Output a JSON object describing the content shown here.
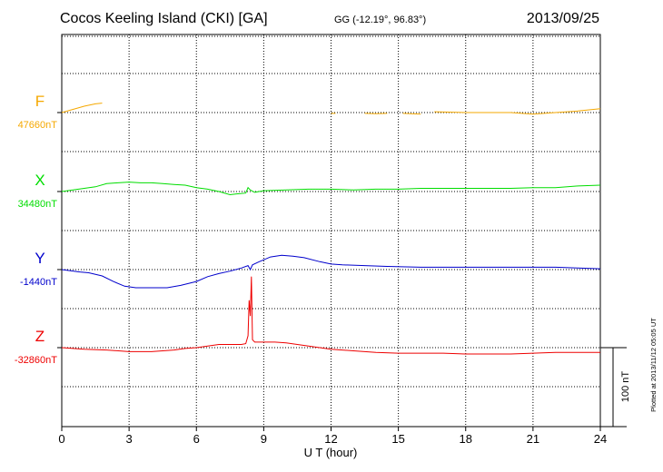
{
  "header": {
    "station": "Cocos Keeling Island (CKI)  [GA]",
    "coords": "GG (-12.19°,  96.83°)",
    "date": "2013/09/25"
  },
  "plotted_note": "Plotted at 2013/11/12 05:05 UT",
  "chart_data": {
    "type": "line",
    "xlabel": "U T (hour)",
    "xlim": [
      0,
      24
    ],
    "xticks": [
      0,
      3,
      6,
      9,
      12,
      15,
      18,
      21,
      24
    ],
    "grid": true,
    "scale_bar": {
      "label": "100 nT",
      "value_nT": 100
    },
    "series": [
      {
        "name": "F",
        "color": "#f5a800",
        "base_label": "47660nT",
        "base_nT": 47660,
        "segments": [
          [
            [
              0,
              0
            ],
            [
              0.5,
              4
            ],
            [
              1,
              8
            ],
            [
              1.5,
              11
            ],
            [
              1.8,
              12
            ]
          ],
          [
            [
              12,
              -1
            ],
            [
              12.2,
              -1
            ]
          ],
          [
            [
              13.5,
              -1
            ],
            [
              14,
              -1.5
            ],
            [
              14.5,
              -1
            ]
          ],
          [
            [
              15.2,
              -1
            ],
            [
              16,
              -2
            ]
          ],
          [
            [
              16.6,
              1
            ],
            [
              18,
              0
            ],
            [
              19,
              0
            ],
            [
              20,
              0
            ],
            [
              21,
              -2
            ],
            [
              22,
              0
            ],
            [
              23,
              2
            ],
            [
              24,
              5
            ]
          ]
        ]
      },
      {
        "name": "X",
        "color": "#00dd00",
        "base_label": "34480nT",
        "base_nT": 34480,
        "segments": [
          [
            [
              0,
              0
            ],
            [
              0.5,
              2
            ],
            [
              1,
              4
            ],
            [
              1.5,
              6
            ],
            [
              2,
              10
            ],
            [
              2.5,
              11
            ],
            [
              3,
              12
            ],
            [
              3.5,
              11
            ],
            [
              4,
              11
            ],
            [
              4.5,
              10
            ],
            [
              5,
              9
            ],
            [
              5.5,
              8
            ],
            [
              6,
              5
            ],
            [
              6.5,
              3
            ],
            [
              7,
              0
            ],
            [
              7.5,
              -4
            ],
            [
              7.8,
              -3
            ],
            [
              8.2,
              -2
            ],
            [
              8.3,
              5
            ],
            [
              8.4,
              2
            ],
            [
              8.6,
              -1
            ],
            [
              9,
              1
            ],
            [
              10,
              2
            ],
            [
              11,
              3
            ],
            [
              12,
              3
            ],
            [
              13,
              2
            ],
            [
              14,
              3
            ],
            [
              15,
              3
            ],
            [
              16,
              4
            ],
            [
              17,
              4
            ],
            [
              18,
              4
            ],
            [
              19,
              4
            ],
            [
              20,
              4
            ],
            [
              21,
              5
            ],
            [
              22,
              5
            ],
            [
              23,
              7
            ],
            [
              24,
              8
            ]
          ]
        ]
      },
      {
        "name": "Y",
        "color": "#0000cc",
        "base_label": "-1440nT",
        "base_nT": -1440,
        "segments": [
          [
            [
              0,
              0
            ],
            [
              0.8,
              -3
            ],
            [
              1.2,
              -4
            ],
            [
              1.8,
              -8
            ],
            [
              2.3,
              -15
            ],
            [
              2.8,
              -21
            ],
            [
              3.3,
              -23
            ],
            [
              4,
              -23
            ],
            [
              4.7,
              -23
            ],
            [
              5.3,
              -20
            ],
            [
              6,
              -15
            ],
            [
              6.5,
              -9
            ],
            [
              7,
              -5
            ],
            [
              7.5,
              -2
            ],
            [
              8,
              2
            ],
            [
              8.3,
              5
            ],
            [
              8.4,
              0
            ],
            [
              8.5,
              6
            ],
            [
              8.8,
              10
            ],
            [
              9.3,
              16
            ],
            [
              9.8,
              18
            ],
            [
              10.3,
              17
            ],
            [
              10.8,
              15
            ],
            [
              11.5,
              10
            ],
            [
              12,
              7
            ],
            [
              12.5,
              6
            ],
            [
              13.5,
              5
            ],
            [
              14.5,
              4
            ],
            [
              16,
              3
            ],
            [
              18,
              3
            ],
            [
              20,
              3
            ],
            [
              22,
              3
            ],
            [
              23,
              2
            ],
            [
              24,
              1
            ]
          ]
        ]
      },
      {
        "name": "Z",
        "color": "#ee0000",
        "base_label": "-32860nT",
        "base_nT": -32860,
        "segments": [
          [
            [
              0,
              0
            ],
            [
              1,
              -2
            ],
            [
              2,
              -3
            ],
            [
              3,
              -5
            ],
            [
              4,
              -5
            ],
            [
              5,
              -3
            ],
            [
              5.5,
              -1
            ],
            [
              6,
              0
            ],
            [
              6.5,
              2
            ],
            [
              7,
              4
            ],
            [
              7.5,
              4
            ],
            [
              8,
              4
            ],
            [
              8.2,
              5
            ],
            [
              8.3,
              15
            ],
            [
              8.35,
              60
            ],
            [
              8.4,
              40
            ],
            [
              8.45,
              90
            ],
            [
              8.5,
              10
            ],
            [
              8.6,
              7
            ],
            [
              9,
              7
            ],
            [
              9.5,
              7
            ],
            [
              10,
              6
            ],
            [
              10.5,
              4
            ],
            [
              11,
              2
            ],
            [
              11.5,
              0
            ],
            [
              12,
              -2
            ],
            [
              13,
              -4
            ],
            [
              14,
              -6
            ],
            [
              15,
              -7
            ],
            [
              16,
              -7
            ],
            [
              17,
              -7
            ],
            [
              18,
              -8
            ],
            [
              19,
              -8
            ],
            [
              20,
              -8
            ],
            [
              21,
              -7
            ],
            [
              22,
              -6
            ],
            [
              23,
              -6
            ],
            [
              24,
              -6
            ]
          ]
        ]
      }
    ]
  }
}
